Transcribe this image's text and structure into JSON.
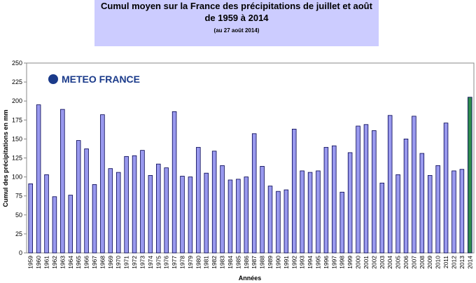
{
  "chart_data": {
    "type": "bar",
    "title": [
      "Cumul moyen sur la France des précipitations de juillet et août",
      "de 1959 à 2014"
    ],
    "subtitle": "(au 27 août 2014)",
    "logo": "METEO FRANCE",
    "y_label": "Cumul des précipitations en mm",
    "x_label": "Années",
    "categories": [
      "1959",
      "1960",
      "1961",
      "1962",
      "1963",
      "1964",
      "1965",
      "1966",
      "1967",
      "1968",
      "1969",
      "1970",
      "1971",
      "1972",
      "1973",
      "1974",
      "1975",
      "1976",
      "1977",
      "1978",
      "1979",
      "1980",
      "1981",
      "1982",
      "1983",
      "1984",
      "1985",
      "1986",
      "1987",
      "1988",
      "1989",
      "1990",
      "1991",
      "1992",
      "1993",
      "1994",
      "1995",
      "1996",
      "1997",
      "1998",
      "1999",
      "2000",
      "2001",
      "2002",
      "2003",
      "2004",
      "2005",
      "2006",
      "2007",
      "2008",
      "2009",
      "2010",
      "2011",
      "2012",
      "2013",
      "2014"
    ],
    "values": [
      91,
      195,
      103,
      74,
      189,
      76,
      148,
      137,
      90,
      182,
      111,
      106,
      127,
      128,
      135,
      102,
      117,
      112,
      186,
      101,
      100,
      139,
      105,
      134,
      115,
      96,
      97,
      100,
      157,
      114,
      88,
      81,
      83,
      163,
      108,
      106,
      108,
      139,
      141,
      80,
      132,
      167,
      169,
      161,
      92,
      181,
      103,
      150,
      180,
      131,
      102,
      115,
      171,
      108,
      110,
      205
    ],
    "colors": [
      "#9999ee",
      "#9999ee",
      "#9999ee",
      "#9999ee",
      "#9999ee",
      "#9999ee",
      "#9999ee",
      "#9999ee",
      "#9999ee",
      "#9999ee",
      "#9999ee",
      "#9999ee",
      "#9999ee",
      "#9999ee",
      "#9999ee",
      "#9999ee",
      "#9999ee",
      "#9999ee",
      "#9999ee",
      "#9999ee",
      "#9999ee",
      "#9999ee",
      "#9999ee",
      "#9999ee",
      "#9999ee",
      "#9999ee",
      "#9999ee",
      "#9999ee",
      "#9999ee",
      "#9999ee",
      "#9999ee",
      "#9999ee",
      "#9999ee",
      "#9999ee",
      "#9999ee",
      "#9999ee",
      "#9999ee",
      "#9999ee",
      "#9999ee",
      "#9999ee",
      "#9999ee",
      "#9999ee",
      "#9999ee",
      "#9999ee",
      "#9999ee",
      "#9999ee",
      "#9999ee",
      "#9999ee",
      "#9999ee",
      "#9999ee",
      "#9999ee",
      "#9999ee",
      "#9999ee",
      "#9999ee",
      "#9999ee",
      "#2e8b4e"
    ],
    "ylim": [
      0,
      250
    ],
    "yticks": [
      0,
      25,
      50,
      75,
      100,
      125,
      150,
      175,
      200,
      225,
      250
    ],
    "grid": false
  }
}
